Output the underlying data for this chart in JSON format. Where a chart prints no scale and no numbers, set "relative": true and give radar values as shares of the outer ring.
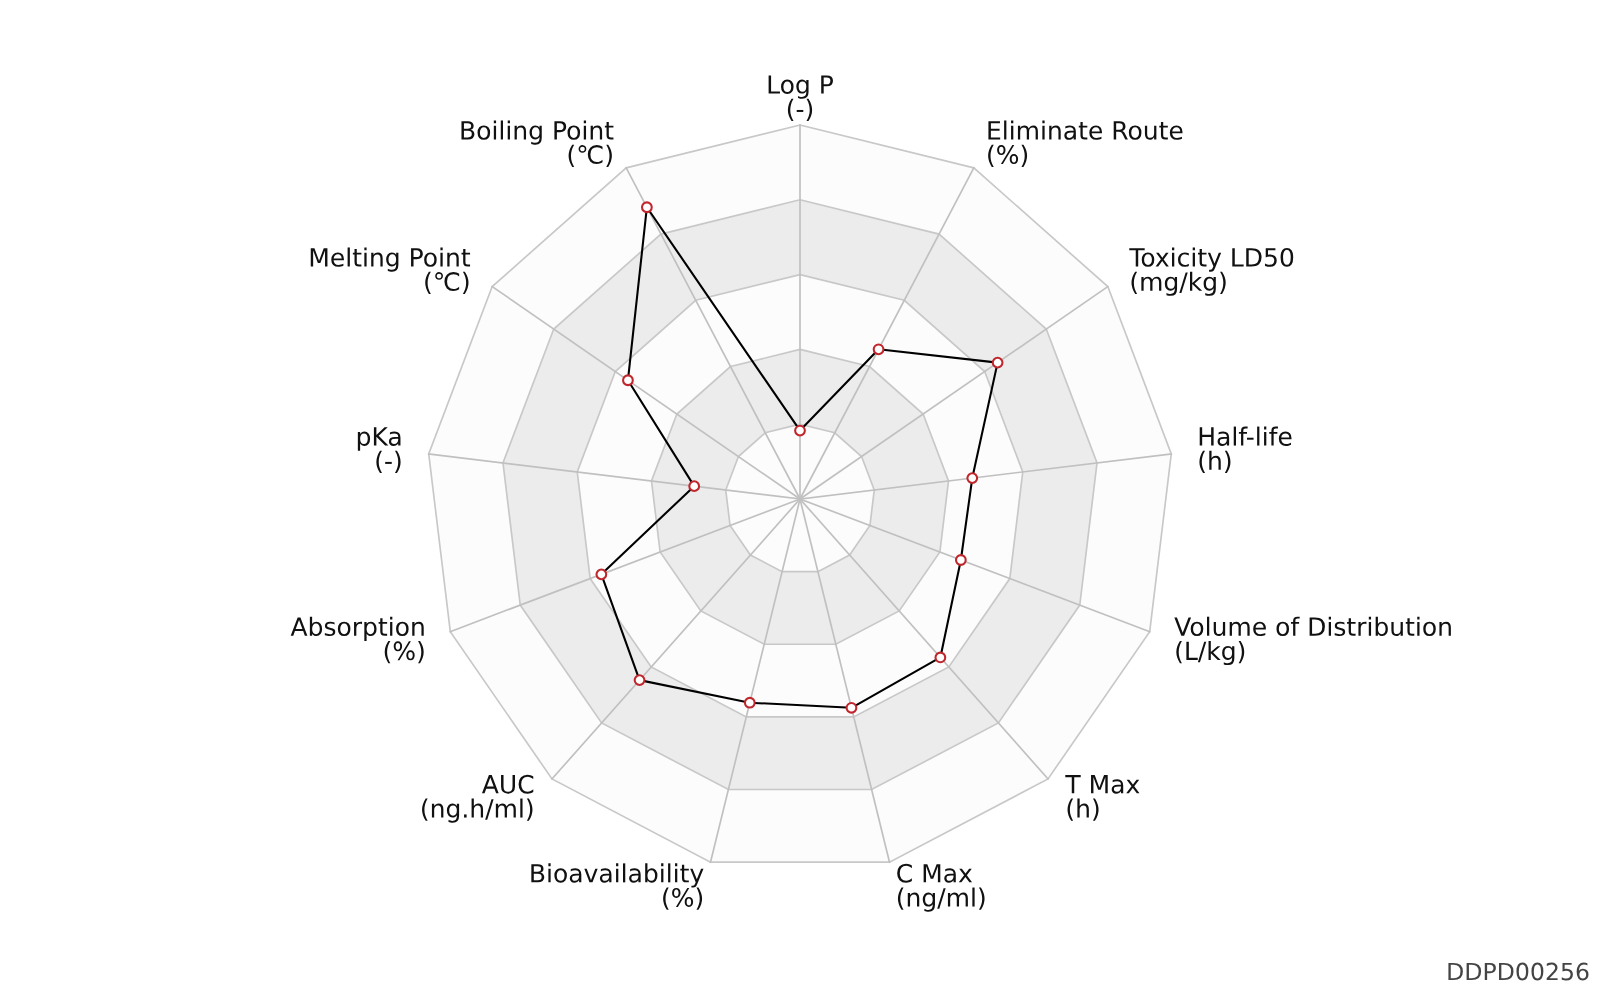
{
  "chart_data": {
    "type": "radar",
    "relative": true,
    "grid": true,
    "marker": "circle",
    "line_style": "solid",
    "categories": [
      "Log P\n(-)",
      "Eliminate Route\n(%)",
      "Toxicity LD50\n(mg/kg)",
      "Half-life\n(h)",
      "Volume of Distribution\n(L/kg)",
      "T Max\n(h)",
      "C Max\n(ng/ml)",
      "Bioavailability\n(%)",
      "AUC\n(ng.h/ml)",
      "Absorption\n(%)",
      "pKa\n(-)",
      "Melting Point\n(℃)",
      "Boiling Point\n(℃)"
    ],
    "series": [
      {
        "color": "#000000",
        "values": [
          0.183,
          0.452,
          0.642,
          0.464,
          0.46,
          0.566,
          0.575,
          0.561,
          0.647,
          0.568,
          0.285,
          0.559,
          0.881
        ]
      }
    ],
    "annotations": [
      "DDPD00256"
    ]
  }
}
